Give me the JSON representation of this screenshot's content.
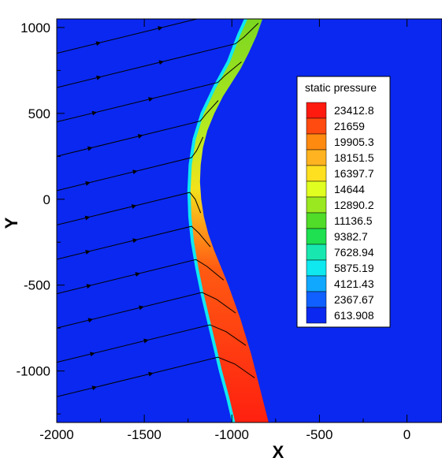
{
  "chart_data": {
    "type": "heatmap",
    "xlabel": "X",
    "ylabel": "Y",
    "xlim": [
      -2000,
      200
    ],
    "ylim": [
      -1300,
      1050
    ],
    "x_ticks": [
      -2000,
      -1500,
      -1000,
      -500,
      0
    ],
    "x_tick_labels": [
      "-2000",
      "-1500",
      "-1000",
      "-500",
      "0"
    ],
    "y_ticks": [
      1000,
      500,
      0,
      -500,
      -1000
    ],
    "y_tick_labels": [
      "1000",
      "500",
      "0",
      "-500",
      "-1000"
    ],
    "legend": {
      "title": "static pressure",
      "levels": [
        "23412.8",
        "21659",
        "19905.3",
        "18151.5",
        "16397.7",
        "14644",
        "12890.2",
        "11136.5",
        "9382.7",
        "7628.94",
        "5875.19",
        "4121.43",
        "2367.67",
        "613.908"
      ],
      "colors": [
        "#ff1a10",
        "#ff4a10",
        "#ff8a10",
        "#ffb320",
        "#ffe020",
        "#e0ff20",
        "#9ae820",
        "#50dc28",
        "#1ee050",
        "#18e8b0",
        "#10e8f0",
        "#10a8ff",
        "#1060ff",
        "#0a28f0"
      ],
      "placement": "right"
    },
    "background_color": "#0a28f0",
    "shock_front": [
      [
        -920,
        1050
      ],
      [
        -960,
        960
      ],
      [
        -1020,
        800
      ],
      [
        -1100,
        650
      ],
      [
        -1170,
        500
      ],
      [
        -1215,
        350
      ],
      [
        -1238,
        200
      ],
      [
        -1245,
        50
      ],
      [
        -1240,
        -100
      ],
      [
        -1225,
        -250
      ],
      [
        -1200,
        -400
      ],
      [
        -1170,
        -550
      ],
      [
        -1135,
        -700
      ],
      [
        -1100,
        -850
      ],
      [
        -1065,
        -1000
      ],
      [
        -1025,
        -1150
      ],
      [
        -990,
        -1300
      ]
    ],
    "body_surface": [
      [
        -825,
        1050
      ],
      [
        -860,
        950
      ],
      [
        -905,
        850
      ],
      [
        -950,
        760
      ],
      [
        -1000,
        680
      ],
      [
        -1050,
        600
      ],
      [
        -1100,
        500
      ],
      [
        -1140,
        400
      ],
      [
        -1165,
        300
      ],
      [
        -1178,
        200
      ],
      [
        -1182,
        100
      ],
      [
        -1175,
        0
      ],
      [
        -1160,
        -100
      ],
      [
        -1135,
        -200
      ],
      [
        -1100,
        -300
      ],
      [
        -1060,
        -400
      ],
      [
        -1020,
        -500
      ],
      [
        -985,
        -600
      ],
      [
        -950,
        -700
      ],
      [
        -920,
        -800
      ],
      [
        -890,
        -900
      ],
      [
        -865,
        -1000
      ],
      [
        -840,
        -1100
      ],
      [
        -815,
        -1200
      ],
      [
        -790,
        -1300
      ]
    ],
    "streamline_starts_y": [
      850,
      650,
      450,
      250,
      50,
      -150,
      -350,
      -550,
      -750,
      -950,
      -1150
    ],
    "streamline_slope": 0.25
  }
}
